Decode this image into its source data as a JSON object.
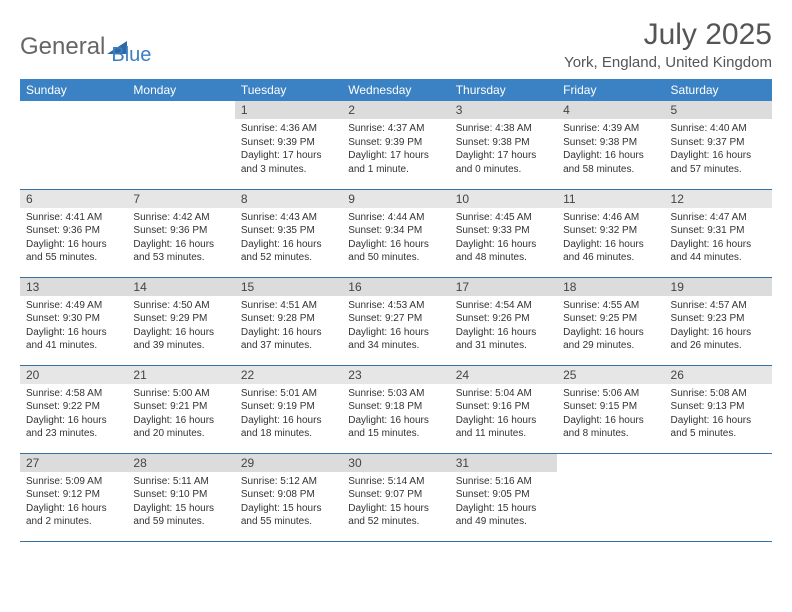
{
  "logo": {
    "text1": "General",
    "text2": "Blue",
    "icon_color": "#2d6aa3"
  },
  "title": "July 2025",
  "location": "York, England, United Kingdom",
  "colors": {
    "header_bg": "#3b82c4",
    "header_fg": "#ffffff",
    "daynum_bg": "#e6e6e6",
    "daynum_bg_shade": "#dcdcdc",
    "rule": "#3b6fa0",
    "text": "#333333"
  },
  "day_headers": [
    "Sunday",
    "Monday",
    "Tuesday",
    "Wednesday",
    "Thursday",
    "Friday",
    "Saturday"
  ],
  "weeks": [
    [
      null,
      null,
      {
        "n": "1",
        "sr": "4:36 AM",
        "ss": "9:39 PM",
        "dl": "17 hours and 3 minutes."
      },
      {
        "n": "2",
        "sr": "4:37 AM",
        "ss": "9:39 PM",
        "dl": "17 hours and 1 minute."
      },
      {
        "n": "3",
        "sr": "4:38 AM",
        "ss": "9:38 PM",
        "dl": "17 hours and 0 minutes."
      },
      {
        "n": "4",
        "sr": "4:39 AM",
        "ss": "9:38 PM",
        "dl": "16 hours and 58 minutes."
      },
      {
        "n": "5",
        "sr": "4:40 AM",
        "ss": "9:37 PM",
        "dl": "16 hours and 57 minutes."
      }
    ],
    [
      {
        "n": "6",
        "sr": "4:41 AM",
        "ss": "9:36 PM",
        "dl": "16 hours and 55 minutes."
      },
      {
        "n": "7",
        "sr": "4:42 AM",
        "ss": "9:36 PM",
        "dl": "16 hours and 53 minutes."
      },
      {
        "n": "8",
        "sr": "4:43 AM",
        "ss": "9:35 PM",
        "dl": "16 hours and 52 minutes."
      },
      {
        "n": "9",
        "sr": "4:44 AM",
        "ss": "9:34 PM",
        "dl": "16 hours and 50 minutes."
      },
      {
        "n": "10",
        "sr": "4:45 AM",
        "ss": "9:33 PM",
        "dl": "16 hours and 48 minutes."
      },
      {
        "n": "11",
        "sr": "4:46 AM",
        "ss": "9:32 PM",
        "dl": "16 hours and 46 minutes."
      },
      {
        "n": "12",
        "sr": "4:47 AM",
        "ss": "9:31 PM",
        "dl": "16 hours and 44 minutes."
      }
    ],
    [
      {
        "n": "13",
        "sr": "4:49 AM",
        "ss": "9:30 PM",
        "dl": "16 hours and 41 minutes."
      },
      {
        "n": "14",
        "sr": "4:50 AM",
        "ss": "9:29 PM",
        "dl": "16 hours and 39 minutes."
      },
      {
        "n": "15",
        "sr": "4:51 AM",
        "ss": "9:28 PM",
        "dl": "16 hours and 37 minutes."
      },
      {
        "n": "16",
        "sr": "4:53 AM",
        "ss": "9:27 PM",
        "dl": "16 hours and 34 minutes."
      },
      {
        "n": "17",
        "sr": "4:54 AM",
        "ss": "9:26 PM",
        "dl": "16 hours and 31 minutes."
      },
      {
        "n": "18",
        "sr": "4:55 AM",
        "ss": "9:25 PM",
        "dl": "16 hours and 29 minutes."
      },
      {
        "n": "19",
        "sr": "4:57 AM",
        "ss": "9:23 PM",
        "dl": "16 hours and 26 minutes."
      }
    ],
    [
      {
        "n": "20",
        "sr": "4:58 AM",
        "ss": "9:22 PM",
        "dl": "16 hours and 23 minutes."
      },
      {
        "n": "21",
        "sr": "5:00 AM",
        "ss": "9:21 PM",
        "dl": "16 hours and 20 minutes."
      },
      {
        "n": "22",
        "sr": "5:01 AM",
        "ss": "9:19 PM",
        "dl": "16 hours and 18 minutes."
      },
      {
        "n": "23",
        "sr": "5:03 AM",
        "ss": "9:18 PM",
        "dl": "16 hours and 15 minutes."
      },
      {
        "n": "24",
        "sr": "5:04 AM",
        "ss": "9:16 PM",
        "dl": "16 hours and 11 minutes."
      },
      {
        "n": "25",
        "sr": "5:06 AM",
        "ss": "9:15 PM",
        "dl": "16 hours and 8 minutes."
      },
      {
        "n": "26",
        "sr": "5:08 AM",
        "ss": "9:13 PM",
        "dl": "16 hours and 5 minutes."
      }
    ],
    [
      {
        "n": "27",
        "sr": "5:09 AM",
        "ss": "9:12 PM",
        "dl": "16 hours and 2 minutes."
      },
      {
        "n": "28",
        "sr": "5:11 AM",
        "ss": "9:10 PM",
        "dl": "15 hours and 59 minutes."
      },
      {
        "n": "29",
        "sr": "5:12 AM",
        "ss": "9:08 PM",
        "dl": "15 hours and 55 minutes."
      },
      {
        "n": "30",
        "sr": "5:14 AM",
        "ss": "9:07 PM",
        "dl": "15 hours and 52 minutes."
      },
      {
        "n": "31",
        "sr": "5:16 AM",
        "ss": "9:05 PM",
        "dl": "15 hours and 49 minutes."
      },
      null,
      null
    ]
  ],
  "labels": {
    "sunrise": "Sunrise:",
    "sunset": "Sunset:",
    "daylight": "Daylight:"
  }
}
